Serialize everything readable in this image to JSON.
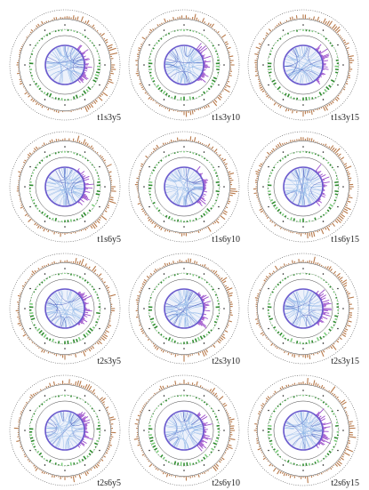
{
  "colors": {
    "background": "#ffffff",
    "dotted_ring": "#555555",
    "solid_ring": "#444444",
    "outer_histogram": "#b8794a",
    "green_track": "#2e8b2e",
    "light_green_track": "#7ccd7c",
    "purple_bars": "#9b4dca",
    "inner_circle": "#6a5acd",
    "links": "#8fb6e8",
    "dark_links": "#3a4fb8"
  },
  "panels": [
    {
      "label": "t1s3y5"
    },
    {
      "label": "t1s3y10"
    },
    {
      "label": "t1s3y15"
    },
    {
      "label": "t1s6y5"
    },
    {
      "label": "t1s6y10"
    },
    {
      "label": "t1s6y15"
    },
    {
      "label": "t2s3y5"
    },
    {
      "label": "t2s3y10"
    },
    {
      "label": "t2s3y15"
    },
    {
      "label": "t2s6y5"
    },
    {
      "label": "t2s6y10"
    },
    {
      "label": "t2s6y15"
    }
  ]
}
